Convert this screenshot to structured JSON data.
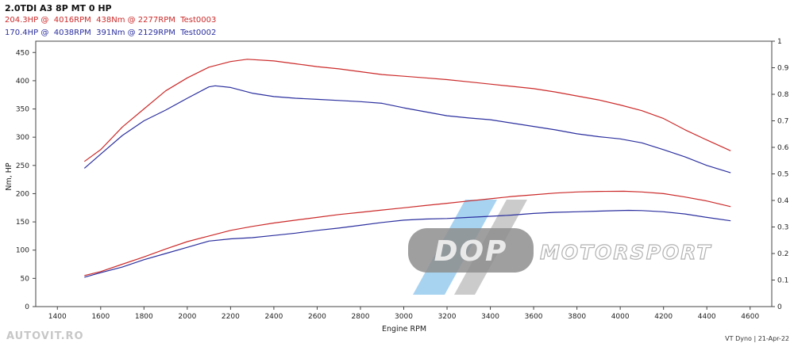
{
  "header": {
    "title": "2.0TDI A3 8P MT 0 HP",
    "runs": [
      {
        "text": "204.3HP @  4016RPM  438Nm @ 2277RPM  Test0003",
        "color": "#cc2a2a"
      },
      {
        "text": "170.4HP @  4038RPM  391Nm @ 2129RPM  Test0002",
        "color": "#2b2f9e"
      }
    ]
  },
  "logo": {
    "main": "DOP",
    "secondary": "MOTORSPORT"
  },
  "footer": "VT Dyno | 21-Apr-22",
  "watermark": "AUTOVIT.RO",
  "chart_data": {
    "type": "line",
    "xlabel": "Engine RPM",
    "ylabel": "Nm, HP",
    "xlim": [
      1300,
      4700
    ],
    "ylim": [
      0,
      470
    ],
    "y2lim": [
      0,
      1.0
    ],
    "xticks": [
      1400,
      1600,
      1800,
      2000,
      2200,
      2400,
      2600,
      2800,
      3000,
      3200,
      3400,
      3600,
      3800,
      4000,
      4200,
      4400,
      4600
    ],
    "yticks": [
      0,
      50,
      100,
      150,
      200,
      250,
      300,
      350,
      400,
      450
    ],
    "y2ticks": [
      "0",
      "0.1",
      "0.2",
      "0.3",
      "0.4",
      "0.5",
      "0.6",
      "0.7",
      "0.8",
      "0.9",
      "1"
    ],
    "grid": false,
    "series": [
      {
        "key": "torque-test0003",
        "color": "#cc2a2a",
        "x": [
          1525,
          1600,
          1700,
          1800,
          1900,
          2000,
          2100,
          2200,
          2277,
          2400,
          2500,
          2600,
          2700,
          2800,
          2900,
          3000,
          3100,
          3200,
          3300,
          3400,
          3500,
          3600,
          3700,
          3800,
          3900,
          4000,
          4100,
          4200,
          4300,
          4400,
          4510
        ],
        "y": [
          257,
          278,
          318,
          350,
          382,
          405,
          424,
          434,
          438,
          435,
          430,
          425,
          421,
          416,
          411,
          408,
          405,
          402,
          398,
          394,
          390,
          386,
          380,
          373,
          366,
          357,
          347,
          333,
          313,
          295,
          276
        ]
      },
      {
        "key": "torque-test0002",
        "color": "#2b2f9e",
        "x": [
          1525,
          1600,
          1700,
          1800,
          1900,
          2000,
          2100,
          2129,
          2200,
          2300,
          2400,
          2500,
          2600,
          2700,
          2800,
          2900,
          3000,
          3100,
          3200,
          3300,
          3400,
          3500,
          3600,
          3700,
          3800,
          3900,
          4000,
          4100,
          4200,
          4300,
          4400,
          4510
        ],
        "y": [
          245,
          270,
          303,
          329,
          348,
          369,
          389,
          391,
          388,
          378,
          372,
          369,
          367,
          365,
          363,
          360,
          352,
          345,
          338,
          334,
          331,
          325,
          319,
          313,
          306,
          301,
          297,
          290,
          278,
          265,
          250,
          237
        ]
      },
      {
        "key": "power-test0003",
        "color": "#cc2a2a",
        "x": [
          1525,
          1600,
          1700,
          1800,
          1900,
          2000,
          2100,
          2200,
          2300,
          2400,
          2500,
          2600,
          2700,
          2800,
          2900,
          3000,
          3100,
          3200,
          3300,
          3400,
          3500,
          3600,
          3700,
          3800,
          3900,
          4016,
          4100,
          4200,
          4300,
          4400,
          4510
        ],
        "y": [
          55,
          62,
          75,
          88,
          102,
          115,
          125,
          135,
          142,
          148,
          153,
          158,
          163,
          167,
          171,
          175,
          179,
          183,
          187,
          191,
          195,
          198,
          201,
          203,
          204,
          204.3,
          203,
          200,
          194,
          187,
          177
        ]
      },
      {
        "key": "power-test0002",
        "color": "#2b2f9e",
        "x": [
          1525,
          1600,
          1700,
          1800,
          1900,
          2000,
          2100,
          2200,
          2300,
          2400,
          2500,
          2600,
          2700,
          2800,
          2900,
          3000,
          3100,
          3200,
          3300,
          3400,
          3500,
          3600,
          3700,
          3800,
          3900,
          4038,
          4100,
          4200,
          4300,
          4400,
          4510
        ],
        "y": [
          52,
          60,
          70,
          83,
          94,
          105,
          116,
          120,
          122,
          126,
          130,
          135,
          139,
          144,
          149,
          153,
          155,
          156,
          158,
          160,
          162,
          165,
          167,
          168,
          169,
          170.4,
          170,
          168,
          164,
          158,
          152
        ]
      }
    ]
  }
}
